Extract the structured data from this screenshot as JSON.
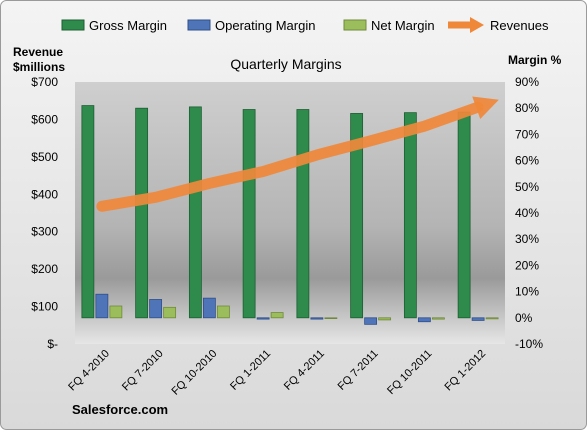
{
  "chart_data": {
    "type": "bar",
    "title": "Quarterly Margins",
    "categories": [
      "FQ 4-2010",
      "FQ 7-2010",
      "FQ 10-2010",
      "FQ 1-2011",
      "FQ 4-2011",
      "FQ 7-2011",
      "FQ 10-2011",
      "FQ 1-2012"
    ],
    "left_axis": {
      "label_line1": "Revenue",
      "label_line2": "$millions",
      "ylim": [
        0,
        700
      ],
      "ticks": [
        0,
        100,
        200,
        300,
        400,
        500,
        600,
        700
      ],
      "tick_labels": [
        "$-",
        "$100",
        "$200",
        "$300",
        "$400",
        "$500",
        "$600",
        "$700"
      ]
    },
    "right_axis": {
      "label": "Margin %",
      "ylim": [
        -10,
        90
      ],
      "ticks": [
        -10,
        0,
        10,
        20,
        30,
        40,
        50,
        60,
        70,
        80,
        90
      ],
      "tick_labels": [
        "-10%",
        "0%",
        "10%",
        "20%",
        "30%",
        "40%",
        "50%",
        "60%",
        "70%",
        "80%",
        "90%"
      ]
    },
    "series": [
      {
        "name": "Gross Margin",
        "type": "bar",
        "axis": "right",
        "color": "#2e8b4c",
        "values": [
          81,
          80,
          80.5,
          79.5,
          79.5,
          78,
          78.3,
          78.5
        ]
      },
      {
        "name": "Operating Margin",
        "type": "bar",
        "axis": "right",
        "color": "#4f74b8",
        "values": [
          9,
          7,
          7.5,
          -0.5,
          -0.5,
          -2.5,
          -1.5,
          -1
        ]
      },
      {
        "name": "Net Margin",
        "type": "bar",
        "axis": "right",
        "color": "#9cbd5b",
        "values": [
          4.5,
          4,
          4.5,
          2,
          -0.3,
          -0.8,
          -0.5,
          -0.4
        ]
      },
      {
        "name": "Revenues",
        "type": "arrow-line",
        "axis": "left",
        "color": "#f0883a",
        "values": [
          368,
          392,
          429,
          461,
          505,
          543,
          582,
          633
        ]
      }
    ],
    "legend_position": "top",
    "grid": false,
    "watermark": "Salesforce.com"
  }
}
